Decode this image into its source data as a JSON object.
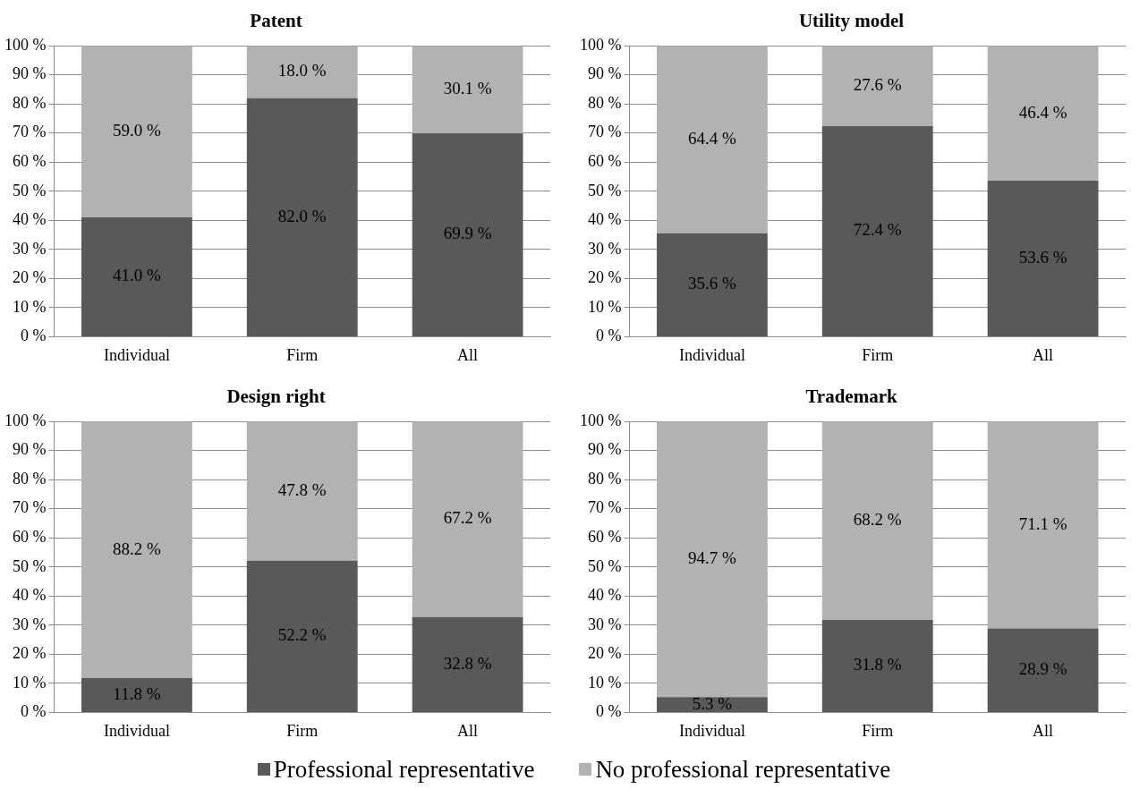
{
  "chart_data": [
    {
      "type": "bar",
      "title": "Patent",
      "categories": [
        "Individual",
        "Firm",
        "All"
      ],
      "stacked": true,
      "ylim": [
        0,
        100
      ],
      "yticks": [
        {
          "value": 0,
          "label": "0 %"
        },
        {
          "value": 10,
          "label": "10 %"
        },
        {
          "value": 20,
          "label": "20 %"
        },
        {
          "value": 30,
          "label": "30 %"
        },
        {
          "value": 40,
          "label": "40 %"
        },
        {
          "value": 50,
          "label": "50 %"
        },
        {
          "value": 60,
          "label": "60 %"
        },
        {
          "value": 70,
          "label": "70 %"
        },
        {
          "value": 80,
          "label": "80 %"
        },
        {
          "value": 90,
          "label": "90 %"
        },
        {
          "value": 100,
          "label": "100 %"
        }
      ],
      "grid": "y",
      "legend": "bottom",
      "series": [
        {
          "name": "Professional representative",
          "color": "#595959",
          "values": [
            41.0,
            82.0,
            69.9
          ],
          "value_labels": [
            "41.0 %",
            "82.0 %",
            "69.9 %"
          ]
        },
        {
          "name": "No professional representative",
          "color": "#b2b2b2",
          "values": [
            59.0,
            18.0,
            30.1
          ],
          "value_labels": [
            "59.0 %",
            "18.0 %",
            "30.1 %"
          ]
        }
      ]
    },
    {
      "type": "bar",
      "title": "Utility model",
      "categories": [
        "Individual",
        "Firm",
        "All"
      ],
      "stacked": true,
      "ylim": [
        0,
        100
      ],
      "yticks": [
        {
          "value": 0,
          "label": "0 %"
        },
        {
          "value": 10,
          "label": "10 %"
        },
        {
          "value": 20,
          "label": "20 %"
        },
        {
          "value": 30,
          "label": "30 %"
        },
        {
          "value": 40,
          "label": "40 %"
        },
        {
          "value": 50,
          "label": "50 %"
        },
        {
          "value": 60,
          "label": "60 %"
        },
        {
          "value": 70,
          "label": "70 %"
        },
        {
          "value": 80,
          "label": "80 %"
        },
        {
          "value": 90,
          "label": "90 %"
        },
        {
          "value": 100,
          "label": "100 %"
        }
      ],
      "grid": "y",
      "legend": "bottom",
      "series": [
        {
          "name": "Professional representative",
          "color": "#595959",
          "values": [
            35.6,
            72.4,
            53.6
          ],
          "value_labels": [
            "35.6 %",
            "72.4 %",
            "53.6 %"
          ]
        },
        {
          "name": "No professional representative",
          "color": "#b2b2b2",
          "values": [
            64.4,
            27.6,
            46.4
          ],
          "value_labels": [
            "64.4 %",
            "27.6 %",
            "46.4 %"
          ]
        }
      ]
    },
    {
      "type": "bar",
      "title": "Design right",
      "categories": [
        "Individual",
        "Firm",
        "All"
      ],
      "stacked": true,
      "ylim": [
        0,
        100
      ],
      "yticks": [
        {
          "value": 0,
          "label": "0 %"
        },
        {
          "value": 10,
          "label": "10 %"
        },
        {
          "value": 20,
          "label": "20 %"
        },
        {
          "value": 30,
          "label": "30 %"
        },
        {
          "value": 40,
          "label": "40 %"
        },
        {
          "value": 50,
          "label": "50 %"
        },
        {
          "value": 60,
          "label": "60 %"
        },
        {
          "value": 70,
          "label": "70 %"
        },
        {
          "value": 80,
          "label": "80 %"
        },
        {
          "value": 90,
          "label": "90 %"
        },
        {
          "value": 100,
          "label": "100 %"
        }
      ],
      "grid": "y",
      "legend": "bottom",
      "series": [
        {
          "name": "Professional representative",
          "color": "#595959",
          "values": [
            11.8,
            52.2,
            32.8
          ],
          "value_labels": [
            "11.8 %",
            "52.2 %",
            "32.8 %"
          ]
        },
        {
          "name": "No professional representative",
          "color": "#b2b2b2",
          "values": [
            88.2,
            47.8,
            67.2
          ],
          "value_labels": [
            "88.2 %",
            "47.8 %",
            "67.2 %"
          ]
        }
      ]
    },
    {
      "type": "bar",
      "title": "Trademark",
      "categories": [
        "Individual",
        "Firm",
        "All"
      ],
      "stacked": true,
      "ylim": [
        0,
        100
      ],
      "yticks": [
        {
          "value": 0,
          "label": "0 %"
        },
        {
          "value": 10,
          "label": "10 %"
        },
        {
          "value": 20,
          "label": "20 %"
        },
        {
          "value": 30,
          "label": "30 %"
        },
        {
          "value": 40,
          "label": "40 %"
        },
        {
          "value": 50,
          "label": "50 %"
        },
        {
          "value": 60,
          "label": "60 %"
        },
        {
          "value": 70,
          "label": "70 %"
        },
        {
          "value": 80,
          "label": "80 %"
        },
        {
          "value": 90,
          "label": "90 %"
        },
        {
          "value": 100,
          "label": "100 %"
        }
      ],
      "grid": "y",
      "legend": "bottom",
      "series": [
        {
          "name": "Professional representative",
          "color": "#595959",
          "values": [
            5.3,
            31.8,
            28.9
          ],
          "value_labels": [
            "5.3 %",
            "31.8 %",
            "28.9 %"
          ]
        },
        {
          "name": "No professional representative",
          "color": "#b2b2b2",
          "values": [
            94.7,
            68.2,
            71.1
          ],
          "value_labels": [
            "94.7 %",
            "68.2 %",
            "71.1 %"
          ]
        }
      ]
    }
  ]
}
